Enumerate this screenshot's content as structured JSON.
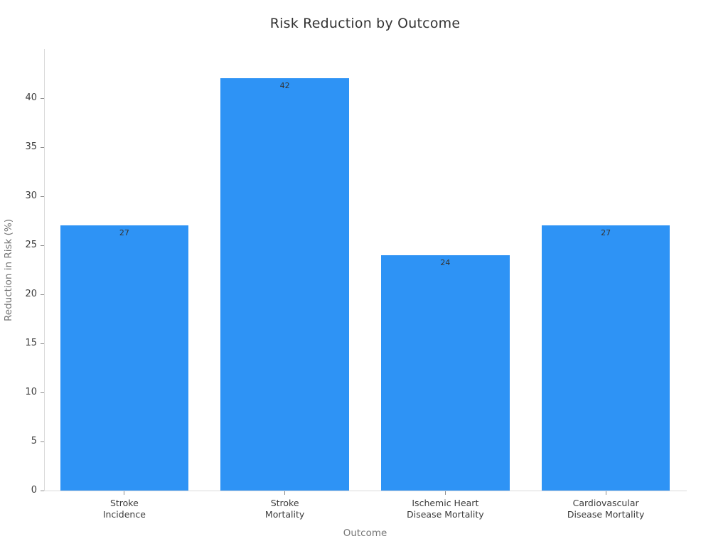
{
  "chart_data": {
    "type": "bar",
    "title": "Risk Reduction by Outcome",
    "xlabel": "Outcome",
    "ylabel": "Reduction in Risk (%)",
    "categories": [
      "Stroke\nIncidence",
      "Stroke\nMortality",
      "Ischemic Heart\nDisease Mortality",
      "Cardiovascular\nDisease Mortality"
    ],
    "values": [
      27,
      42,
      24,
      27
    ],
    "value_labels": [
      "27",
      "42",
      "24",
      "27"
    ],
    "ylim": [
      0,
      45
    ],
    "yticks": [
      0,
      5,
      10,
      15,
      20,
      25,
      30,
      35,
      40
    ],
    "grid": false,
    "legend": "none",
    "colors": {
      "bar": "#2E93F5",
      "title_text": "#333333",
      "tick_text": "#3c3c3c",
      "axis_label_text": "#757575",
      "spine": "#d9d9d9",
      "value_label_text": "#333333",
      "background": "#ffffff"
    }
  }
}
